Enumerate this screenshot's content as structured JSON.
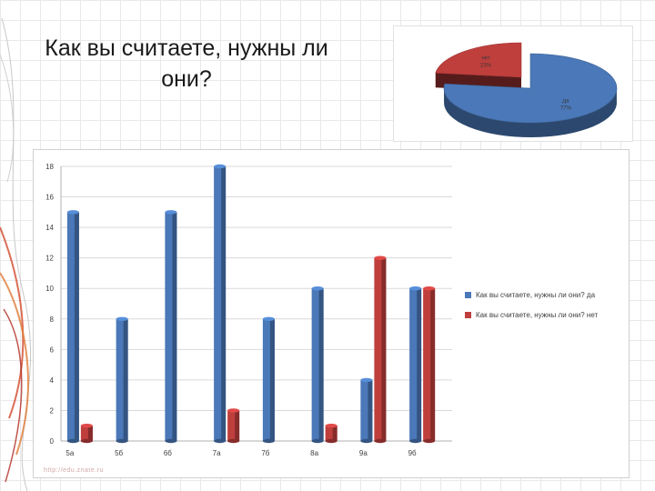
{
  "slide": {
    "title": "Как вы считаете, нужны ли они?",
    "watermark": "http://edu.znate.ru"
  },
  "colors": {
    "blue": "#4a78b8",
    "red": "#bf3f3d",
    "grid": "#d9d9d9"
  },
  "chart_data": [
    {
      "type": "pie",
      "title": "",
      "slices": [
        {
          "label": "да",
          "value": 77,
          "display": "77%",
          "color": "#4a78b8"
        },
        {
          "label": "нет",
          "value": 23,
          "display": "23%",
          "color": "#bf3f3d"
        }
      ]
    },
    {
      "type": "bar",
      "title": "",
      "xlabel": "",
      "ylabel": "",
      "categories": [
        "5а",
        "5б",
        "6б",
        "7а",
        "7б",
        "8а",
        "9а",
        "9б"
      ],
      "series": [
        {
          "name": "Как вы считаете, нужны ли они? да",
          "color": "#4a78b8",
          "values": [
            15,
            8,
            15,
            18,
            8,
            10,
            4,
            10
          ]
        },
        {
          "name": "Как вы считаете, нужны ли они? нет",
          "color": "#bf3f3d",
          "values": [
            1,
            0,
            0,
            2,
            0,
            1,
            12,
            10
          ]
        }
      ],
      "ylim": [
        0,
        18
      ],
      "yticks": [
        0,
        2,
        4,
        6,
        8,
        10,
        12,
        14,
        16,
        18
      ],
      "grid": true,
      "legend_position": "right"
    }
  ]
}
